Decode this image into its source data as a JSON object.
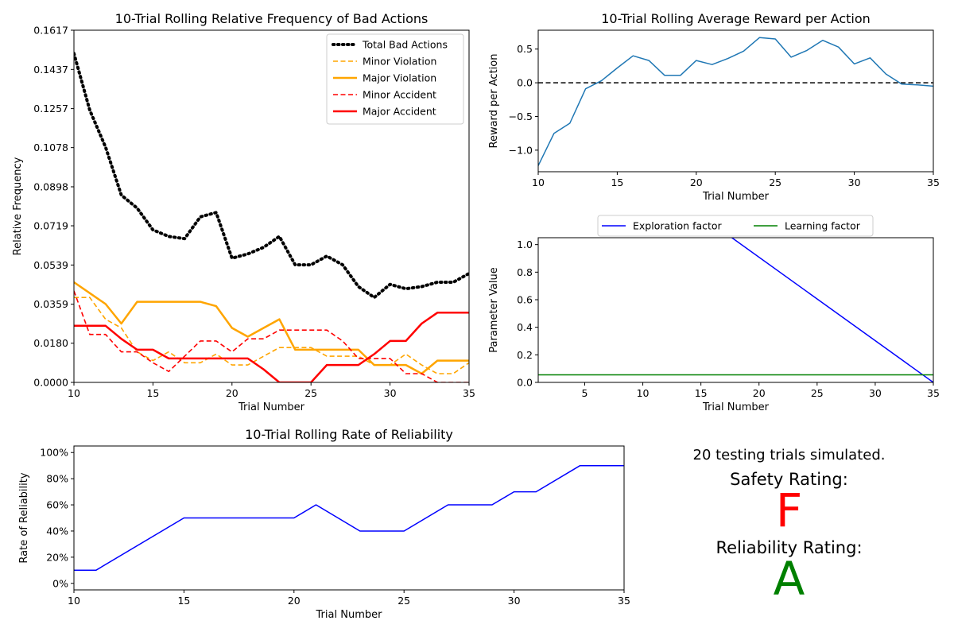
{
  "summary": {
    "trials_text": "20 testing trials simulated.",
    "safety_label": "Safety Rating:",
    "safety_grade": "F",
    "safety_color": "#ff0000",
    "reliability_label": "Reliability Rating:",
    "reliability_grade": "A",
    "reliability_color": "#008000"
  },
  "chart_data": [
    {
      "type": "line",
      "title": "10-Trial Rolling Relative Frequency of Bad Actions",
      "xlabel": "Trial Number",
      "ylabel": "Relative Frequency",
      "xlim": [
        10,
        35
      ],
      "ylim": [
        0,
        0.1617
      ],
      "xticks": [
        10,
        15,
        20,
        25,
        30,
        35
      ],
      "yticks": [
        "0.0000",
        "0.0180",
        "0.0359",
        "0.0539",
        "0.0719",
        "0.0898",
        "0.1078",
        "0.1257",
        "0.1437",
        "0.1617"
      ],
      "legend_position": "top-right",
      "x": [
        10,
        11,
        12,
        13,
        14,
        15,
        16,
        17,
        18,
        19,
        20,
        21,
        22,
        23,
        24,
        25,
        26,
        27,
        28,
        29,
        30,
        31,
        32,
        33,
        34,
        35
      ],
      "series": [
        {
          "name": "Total Bad Actions",
          "color": "#000000",
          "style": "dotted",
          "width": 4,
          "values": [
            0.151,
            0.125,
            0.108,
            0.086,
            0.08,
            0.07,
            0.067,
            0.066,
            0.076,
            0.078,
            0.057,
            0.059,
            0.062,
            0.067,
            0.054,
            0.054,
            0.058,
            0.054,
            0.044,
            0.039,
            0.045,
            0.043,
            0.044,
            0.046,
            0.046,
            0.05
          ]
        },
        {
          "name": "Minor Violation",
          "color": "#ffa500",
          "style": "dashed",
          "width": 1.6,
          "values": [
            0.039,
            0.039,
            0.029,
            0.025,
            0.014,
            0.01,
            0.014,
            0.009,
            0.009,
            0.013,
            0.008,
            0.008,
            0.012,
            0.016,
            0.016,
            0.016,
            0.012,
            0.012,
            0.012,
            0.008,
            0.008,
            0.013,
            0.008,
            0.004,
            0.004,
            0.009
          ]
        },
        {
          "name": "Major Violation",
          "color": "#ffa500",
          "style": "solid",
          "width": 2.5,
          "values": [
            0.046,
            0.041,
            0.036,
            0.027,
            0.037,
            0.037,
            0.037,
            0.037,
            0.037,
            0.035,
            0.025,
            0.021,
            0.025,
            0.029,
            0.015,
            0.015,
            0.015,
            0.015,
            0.015,
            0.008,
            0.008,
            0.008,
            0.004,
            0.01,
            0.01,
            0.01
          ]
        },
        {
          "name": "Minor Accident",
          "color": "#ff0000",
          "style": "dashed",
          "width": 1.6,
          "values": [
            0.042,
            0.022,
            0.022,
            0.014,
            0.014,
            0.009,
            0.005,
            0.012,
            0.019,
            0.019,
            0.014,
            0.02,
            0.02,
            0.024,
            0.024,
            0.024,
            0.024,
            0.019,
            0.011,
            0.011,
            0.011,
            0.004,
            0.004,
            0.0,
            0.0,
            0.0
          ]
        },
        {
          "name": "Major Accident",
          "color": "#ff0000",
          "style": "solid",
          "width": 2.5,
          "values": [
            0.026,
            0.026,
            0.026,
            0.02,
            0.015,
            0.015,
            0.011,
            0.011,
            0.011,
            0.011,
            0.011,
            0.011,
            0.006,
            0.0,
            0.0,
            0.0,
            0.008,
            0.008,
            0.008,
            0.013,
            0.019,
            0.019,
            0.027,
            0.032,
            0.032,
            0.032
          ]
        }
      ]
    },
    {
      "type": "line",
      "title": "10-Trial Rolling Average Reward per Action",
      "xlabel": "Trial Number",
      "ylabel": "Reward per Action",
      "xlim": [
        10,
        35
      ],
      "ylim": [
        -1.32,
        0.78
      ],
      "xticks": [
        10,
        15,
        20,
        25,
        30,
        35
      ],
      "yticks": [
        "0.5",
        "0.0",
        "−0.5",
        "−1.0"
      ],
      "ytick_values": [
        0.5,
        0.0,
        -0.5,
        -1.0
      ],
      "reference_line": {
        "y": 0.0,
        "style": "dashed",
        "color": "#000000"
      },
      "x": [
        10,
        11,
        12,
        13,
        14,
        15,
        16,
        17,
        18,
        19,
        20,
        21,
        22,
        23,
        24,
        25,
        26,
        27,
        28,
        29,
        30,
        31,
        32,
        33,
        34,
        35
      ],
      "series": [
        {
          "color": "#1f77b4",
          "style": "solid",
          "width": 1.5,
          "values": [
            -1.23,
            -0.75,
            -0.6,
            -0.09,
            0.03,
            0.22,
            0.4,
            0.33,
            0.11,
            0.11,
            0.33,
            0.27,
            0.36,
            0.47,
            0.67,
            0.65,
            0.38,
            0.48,
            0.63,
            0.53,
            0.28,
            0.37,
            0.13,
            -0.02,
            -0.03,
            -0.05
          ]
        }
      ]
    },
    {
      "type": "line",
      "xlabel": "Trial Number",
      "ylabel": "Parameter Value",
      "xlim": [
        1,
        35
      ],
      "ylim": [
        0,
        1.05
      ],
      "xticks": [
        5,
        10,
        15,
        20,
        25,
        30,
        35
      ],
      "yticks": [
        "0.0",
        "0.2",
        "0.4",
        "0.6",
        "0.8",
        "1.0"
      ],
      "ytick_values": [
        0.0,
        0.2,
        0.4,
        0.6,
        0.8,
        1.0
      ],
      "legend_position": "top-center",
      "series": [
        {
          "name": "Exploration factor",
          "color": "#0000ff",
          "style": "solid",
          "width": 1.5,
          "x": [
            1,
            17.5,
            35
          ],
          "values": [
            1.9,
            1.06,
            0.0
          ]
        },
        {
          "name": "Learning factor",
          "color": "#008000",
          "style": "solid",
          "width": 1.5,
          "x": [
            1,
            35
          ],
          "values": [
            0.055,
            0.055
          ]
        }
      ]
    },
    {
      "type": "line",
      "title": "10-Trial Rolling Rate of Reliability",
      "xlabel": "Trial Number",
      "ylabel": "Rate of Reliability",
      "xlim": [
        10,
        35
      ],
      "ylim": [
        -5,
        105
      ],
      "xticks": [
        10,
        15,
        20,
        25,
        30,
        35
      ],
      "yticks": [
        "0%",
        "20%",
        "40%",
        "60%",
        "80%",
        "100%"
      ],
      "ytick_values": [
        0,
        20,
        40,
        60,
        80,
        100
      ],
      "x": [
        10,
        11,
        15,
        16,
        17,
        18,
        19,
        20,
        21,
        23,
        24,
        25,
        27,
        28,
        29,
        30,
        31,
        33,
        34,
        35
      ],
      "series": [
        {
          "color": "#0000ff",
          "style": "solid",
          "width": 1.5,
          "values": [
            10,
            10,
            50,
            50,
            50,
            50,
            50,
            50,
            60,
            40,
            40,
            40,
            60,
            60,
            60,
            70,
            70,
            90,
            90,
            90
          ]
        }
      ]
    }
  ]
}
